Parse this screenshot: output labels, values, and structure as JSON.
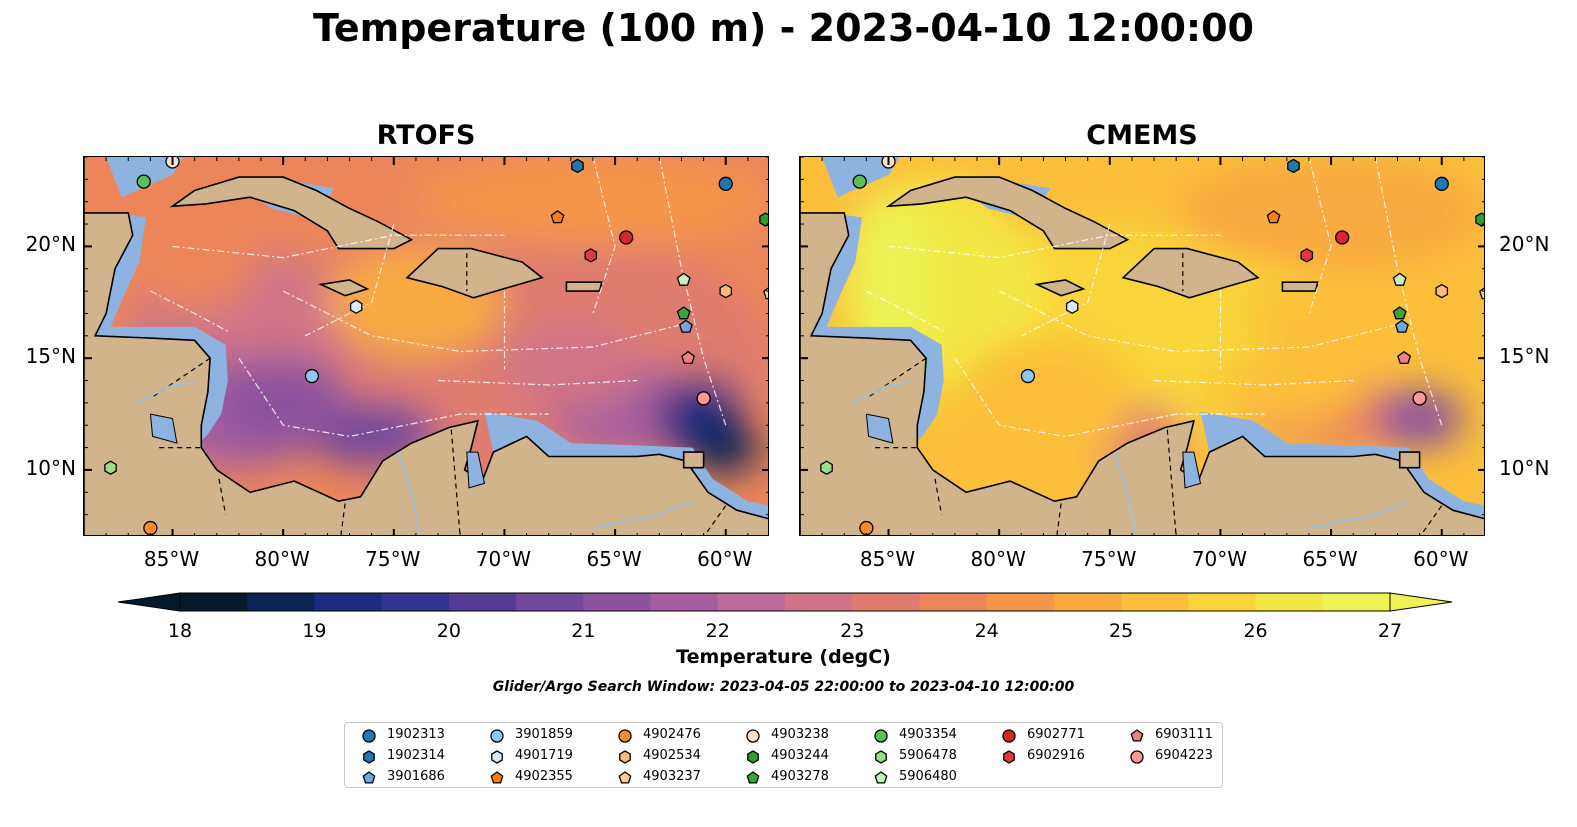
{
  "title": "Temperature (100 m) - 2023-04-10 12:00:00",
  "panels": [
    {
      "title": "RTOFS"
    },
    {
      "title": "CMEMS"
    }
  ],
  "axes": {
    "x_ticks": [
      "85°W",
      "80°W",
      "75°W",
      "70°W",
      "65°W",
      "60°W"
    ],
    "y_ticks": [
      "20°N",
      "15°N",
      "10°N"
    ],
    "lon_range": [
      -89,
      -58
    ],
    "lat_range": [
      7,
      24
    ]
  },
  "colorbar": {
    "ticks": [
      "18",
      "19",
      "20",
      "21",
      "22",
      "23",
      "24",
      "25",
      "26",
      "27"
    ],
    "label": "Temperature (degC)",
    "range": [
      18,
      27
    ],
    "extend": "both"
  },
  "search_window": "Glider/Argo Search Window: 2023-04-05 22:00:00 to 2023-04-10 12:00:00",
  "legend": {
    "columns": [
      [
        {
          "id": "1902313",
          "shape": "circle",
          "color": "#1f77b4"
        },
        {
          "id": "1902314",
          "shape": "hexagon",
          "color": "#1f77b4"
        },
        {
          "id": "3901686",
          "shape": "pentagon",
          "color": "#6fa8dc"
        }
      ],
      [
        {
          "id": "3901859",
          "shape": "circle",
          "color": "#8ec8f0"
        },
        {
          "id": "4901719",
          "shape": "hexagon",
          "color": "#d6ecfa"
        },
        {
          "id": "4902355",
          "shape": "pentagon",
          "color": "#ff7f0e"
        }
      ],
      [
        {
          "id": "4902476",
          "shape": "circle",
          "color": "#ff8c2a"
        },
        {
          "id": "4902534",
          "shape": "hexagon",
          "color": "#ffbb78"
        },
        {
          "id": "4903237",
          "shape": "pentagon",
          "color": "#ffcc99"
        }
      ],
      [
        {
          "id": "4903238",
          "shape": "circle",
          "color": "#fde0c8"
        },
        {
          "id": "4903244",
          "shape": "hexagon",
          "color": "#2ca02c"
        },
        {
          "id": "4903278",
          "shape": "pentagon",
          "color": "#3aa63a"
        }
      ],
      [
        {
          "id": "4903354",
          "shape": "circle",
          "color": "#5cbf5c"
        },
        {
          "id": "5906478",
          "shape": "hexagon",
          "color": "#98df8a"
        },
        {
          "id": "5906480",
          "shape": "pentagon",
          "color": "#c7f0c0"
        }
      ],
      [
        {
          "id": "6902771",
          "shape": "circle",
          "color": "#d62728"
        },
        {
          "id": "6902916",
          "shape": "hexagon",
          "color": "#e03a3c"
        }
      ],
      [
        {
          "id": "6903111",
          "shape": "pentagon",
          "color": "#f08080"
        },
        {
          "id": "6904223",
          "shape": "circle",
          "color": "#ff9896"
        }
      ]
    ]
  },
  "floats": [
    {
      "id": "1902313",
      "lon": -60.0,
      "lat": 22.8
    },
    {
      "id": "1902314",
      "lon": -66.7,
      "lat": 23.6
    },
    {
      "id": "3901686",
      "lon": -61.8,
      "lat": 16.4
    },
    {
      "id": "3901859",
      "lon": -78.7,
      "lat": 14.2
    },
    {
      "id": "4901719",
      "lon": -76.7,
      "lat": 17.3
    },
    {
      "id": "4902355",
      "lon": -67.6,
      "lat": 21.3
    },
    {
      "id": "4902476",
      "lon": -86.0,
      "lat": 7.4
    },
    {
      "id": "4902534",
      "lon": -60.0,
      "lat": 18.0
    },
    {
      "id": "4903237",
      "lon": -58.0,
      "lat": 17.9
    },
    {
      "id": "4903238",
      "lon": -85.0,
      "lat": 23.8
    },
    {
      "id": "4903244",
      "lon": -58.2,
      "lat": 21.2
    },
    {
      "id": "4903278",
      "lon": -61.9,
      "lat": 17.0
    },
    {
      "id": "4903354",
      "lon": -86.3,
      "lat": 22.9
    },
    {
      "id": "5906478",
      "lon": -87.8,
      "lat": 10.1
    },
    {
      "id": "5906480",
      "lon": -61.9,
      "lat": 18.5
    },
    {
      "id": "6902771",
      "lon": -64.5,
      "lat": 20.4
    },
    {
      "id": "6902916",
      "lon": -66.1,
      "lat": 19.6
    },
    {
      "id": "6903111",
      "lon": -61.7,
      "lat": 15.0
    },
    {
      "id": "6904223",
      "lon": -61.0,
      "lat": 13.2
    }
  ]
}
